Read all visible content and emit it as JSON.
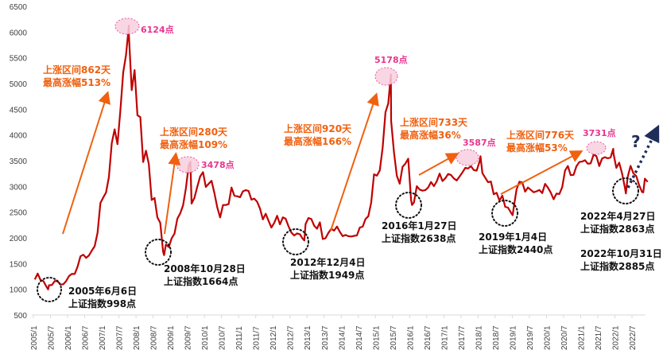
{
  "chart_data": {
    "type": "line",
    "title": "",
    "xlabel": "",
    "ylabel": "",
    "ylim": [
      500,
      6500
    ],
    "yticks": [
      500,
      1000,
      1500,
      2000,
      2500,
      3000,
      3500,
      4000,
      4500,
      5000,
      5500,
      6000,
      6500
    ],
    "xlim": [
      2005.0,
      2022.95
    ],
    "xtick_labels": [
      "2005/1",
      "2005/7",
      "2006/1",
      "2006/7",
      "2007/1",
      "2007/7",
      "2008/1",
      "2008/7",
      "2009/1",
      "2009/7",
      "2010/1",
      "2010/7",
      "2011/1",
      "2011/7",
      "2012/1",
      "2012/7",
      "2013/1",
      "2013/7",
      "2014/1",
      "2014/7",
      "2015/1",
      "2015/7",
      "2016/1",
      "2016/7",
      "2017/1",
      "2017/7",
      "2018/1",
      "2018/7",
      "2019/1",
      "2019/7",
      "2020/1",
      "2020/7",
      "2021/1",
      "2021/7",
      "2022/1",
      "2022/7"
    ],
    "grid": false,
    "line_color": "#c00000",
    "series": [
      {
        "name": "上证指数",
        "monthly_start": "2005/1",
        "values": [
          1191,
          1306,
          1181,
          1159,
          1060,
          1080,
          1083,
          1162,
          1155,
          1093,
          1099,
          1161,
          1258,
          1299,
          1298,
          1440,
          1641,
          1672,
          1612,
          1658,
          1753,
          1837,
          2099,
          2675,
          2786,
          2881,
          3183,
          3841,
          4109,
          3820,
          4471,
          5218,
          5552,
          5954,
          4871,
          5262,
          4383,
          4348,
          3473,
          3693,
          3433,
          2736,
          2775,
          2397,
          2293,
          1729,
          1871,
          1821,
          1990,
          2082,
          2373,
          2477,
          2632,
          2959,
          3412,
          2667,
          2779,
          2996,
          3195,
          3277,
          2989,
          3051,
          3109,
          2870,
          2592,
          2398,
          2638,
          2639,
          2656,
          2979,
          2820,
          2808,
          2790,
          2905,
          2928,
          2911,
          2743,
          2762,
          2701,
          2567,
          2359,
          2468,
          2333,
          2199,
          2292,
          2428,
          2263,
          2397,
          2373,
          2225,
          2103,
          2047,
          2086,
          2069,
          1980,
          2269,
          2385,
          2366,
          2237,
          2178,
          2301,
          1979,
          1994,
          2098,
          2175,
          2141,
          2220,
          2116,
          2033,
          2056,
          2033,
          2026,
          2039,
          2048,
          2201,
          2217,
          2364,
          2420,
          2683,
          3235,
          3210,
          3310,
          3748,
          4442,
          4612,
          4277,
          3664,
          3206,
          3053,
          3383,
          3445,
          3539,
          2738,
          2688,
          3004,
          2938,
          2917,
          2930,
          2979,
          3085,
          3005,
          3100,
          3250,
          3104,
          3159,
          3242,
          3223,
          3155,
          3117,
          3192,
          3273,
          3361,
          3349,
          3393,
          3317,
          3307,
          3481,
          3259,
          3169,
          3082,
          3095,
          2847,
          2876,
          2725,
          2821,
          2603,
          2588,
          2494,
          2585,
          2941,
          3091,
          3078,
          2899,
          2979,
          2933,
          2886,
          2905,
          2929,
          2871,
          3050,
          2977,
          2880,
          2750,
          2860,
          2852,
          2985,
          3310,
          3396,
          3218,
          3225,
          3392,
          3473,
          3483,
          3509,
          3441,
          3447,
          3615,
          3591,
          3397,
          3544,
          3568,
          3547,
          3564,
          3640,
          3361,
          3462,
          3252,
          2975,
          3186,
          3399,
          3253,
          3202,
          3024,
          2893,
          3151,
          3089
        ],
        "extremes": [
          [
            2005.43,
            998
          ],
          [
            2007.79,
            6124
          ],
          [
            2008.82,
            1664
          ],
          [
            2009.59,
            3478
          ],
          [
            2012.92,
            1949
          ],
          [
            2015.45,
            5178
          ],
          [
            2016.07,
            2638
          ],
          [
            2018.07,
            3587
          ],
          [
            2019.01,
            2440
          ],
          [
            2021.95,
            3731
          ],
          [
            2022.32,
            2863
          ],
          [
            2022.83,
            2885
          ]
        ]
      }
    ],
    "annotations": {
      "peaks": [
        "6124点",
        "3478点",
        "5178点",
        "3587点",
        "3731点"
      ],
      "rallies": [
        {
          "days": "上涨区间862天",
          "gain": "最高涨幅513%"
        },
        {
          "days": "上涨区间280天",
          "gain": "最高涨幅109%"
        },
        {
          "days": "上涨区间920天",
          "gain": "最高涨幅166%"
        },
        {
          "days": "上涨区间733天",
          "gain": "最高涨幅36%"
        },
        {
          "days": "上涨区间776天",
          "gain": "最高涨幅53%"
        }
      ],
      "bottoms": [
        {
          "date": "2005年6月6日",
          "value": "上证指数998点"
        },
        {
          "date": "2008年10月28日",
          "value": "上证指数1664点"
        },
        {
          "date": "2012年12月4日",
          "value": "上证指数1949点"
        },
        {
          "date": "2016年1月27日",
          "value": "上证指数2638点"
        },
        {
          "date": "2019年1月4日",
          "value": "上证指数2440点"
        },
        {
          "date": "2022年4月27日",
          "value": "上证指数2863点"
        },
        {
          "date": "2022年10月31日",
          "value": "上证指数2885点"
        }
      ],
      "question": "?"
    },
    "colors": {
      "rally": "#f0600f",
      "peak": "#e8368f",
      "peak_fill": "#f9d0e0",
      "bottom": "#111111",
      "forecast": "#1f2d5a"
    }
  }
}
